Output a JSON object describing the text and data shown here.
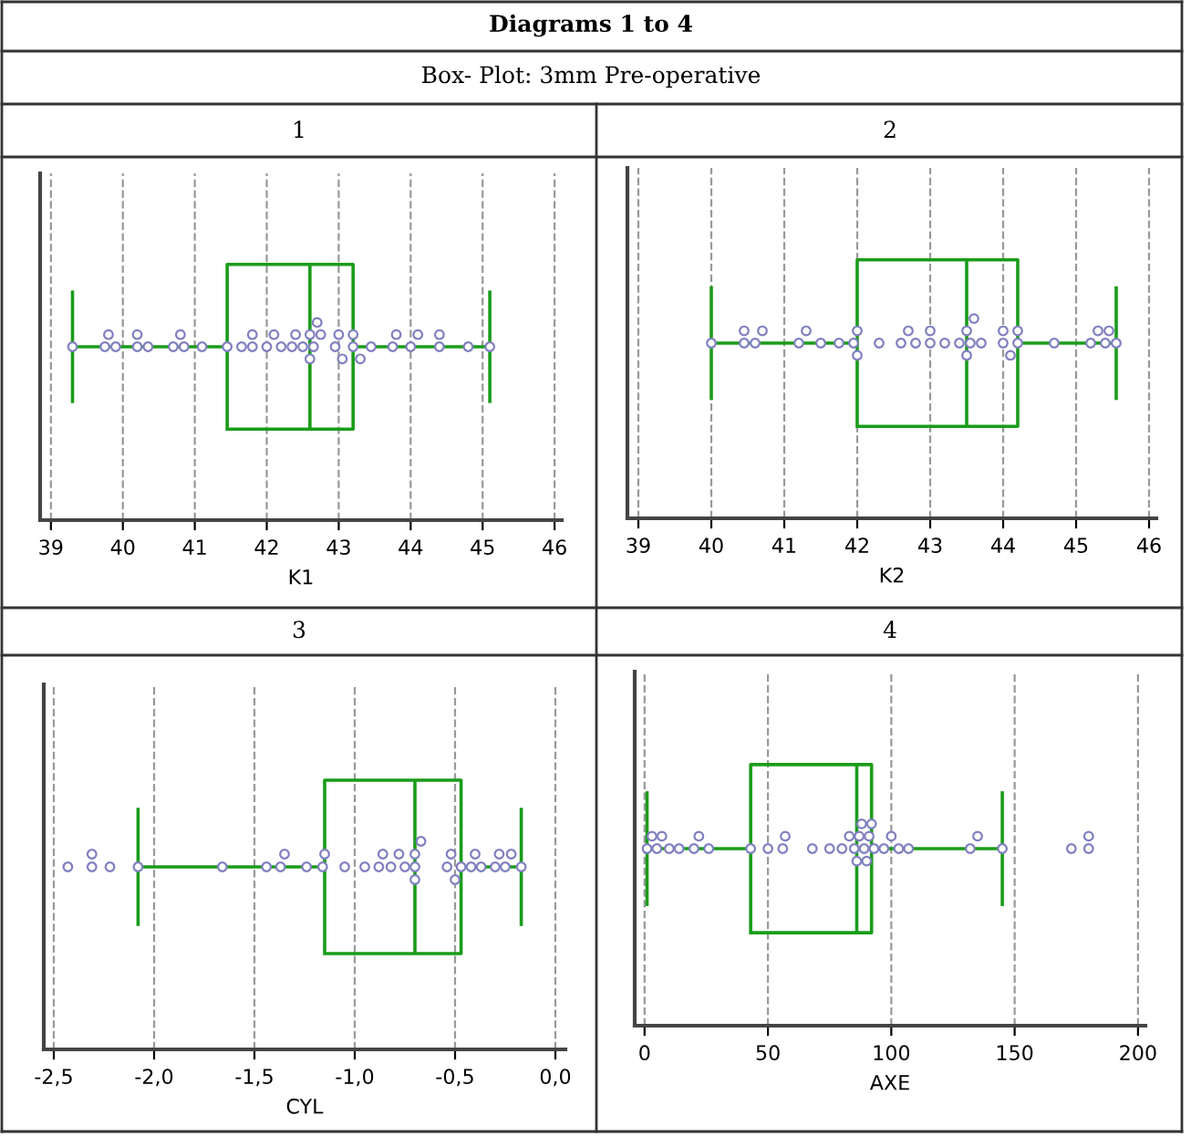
{
  "chart_data": [
    {
      "type": "box",
      "orientation": "horizontal",
      "title": "1",
      "xlabel": "K1",
      "annotations": [
        "Diagrams 1 to 4",
        "Box- Plot: 3mm Pre-operative"
      ],
      "categories": [
        null
      ],
      "boxes": [
        {
          "low": 39.3,
          "q1": 41.45,
          "median": 42.6,
          "q3": 43.2,
          "high": 45.1
        }
      ],
      "color": "#1a9c1a",
      "series": [
        {
          "type": "scatter",
          "color": "#8080c0",
          "marker": "circle",
          "x": [
            null,
            null,
            null,
            null,
            null,
            null,
            null,
            null,
            null,
            null,
            null,
            null,
            null,
            null,
            null,
            null,
            null,
            null,
            null,
            null,
            null,
            null,
            null,
            null,
            null,
            null,
            null,
            null,
            null,
            null,
            null,
            null,
            null,
            null,
            null,
            null,
            null,
            null,
            null,
            null,
            null
          ],
          "values": [
            39.3,
            39.75,
            39.8,
            39.9,
            40.2,
            40.2,
            40.35,
            40.7,
            40.8,
            40.85,
            41.1,
            41.45,
            41.65,
            41.8,
            41.8,
            42.0,
            42.1,
            42.2,
            42.35,
            42.4,
            42.5,
            42.6,
            42.6,
            42.65,
            42.7,
            42.75,
            42.95,
            43.0,
            43.05,
            43.2,
            43.2,
            43.3,
            43.45,
            43.75,
            43.8,
            44.0,
            44.1,
            44.4,
            44.4,
            44.8,
            45.1
          ]
        }
      ],
      "xlim": [
        38.85,
        46.1
      ],
      "xticks": [
        39,
        40,
        41,
        42,
        43,
        44,
        45,
        46
      ],
      "grid": "x",
      "tick_labels": "x"
    },
    {
      "type": "box",
      "orientation": "horizontal",
      "title": "2",
      "xlabel": "K2",
      "categories": [
        null
      ],
      "boxes": [
        {
          "low": 40.0,
          "q1": 42.0,
          "median": 43.5,
          "q3": 44.2,
          "high": 45.55
        }
      ],
      "color": "#1a9c1a",
      "series": [
        {
          "type": "scatter",
          "color": "#8080c0",
          "marker": "circle",
          "x": [
            null,
            null,
            null,
            null,
            null,
            null,
            null,
            null,
            null,
            null,
            null,
            null,
            null,
            null,
            null,
            null,
            null,
            null,
            null,
            null,
            null,
            null,
            null,
            null,
            null,
            null,
            null,
            null,
            null,
            null,
            null,
            null,
            null,
            null,
            null,
            null
          ],
          "values": [
            40.0,
            40.45,
            40.45,
            40.6,
            40.7,
            41.2,
            41.3,
            41.5,
            41.75,
            41.95,
            42.0,
            42.0,
            42.3,
            42.6,
            42.7,
            42.8,
            43.0,
            43.0,
            43.2,
            43.4,
            43.5,
            43.5,
            43.55,
            43.6,
            43.7,
            44.0,
            44.0,
            44.1,
            44.2,
            44.2,
            44.7,
            45.2,
            45.3,
            45.4,
            45.45,
            45.55
          ]
        }
      ],
      "xlim": [
        38.85,
        46.1
      ],
      "xticks": [
        39,
        40,
        41,
        42,
        43,
        44,
        45,
        46
      ],
      "grid": "x",
      "tick_labels": "x"
    },
    {
      "type": "box",
      "orientation": "horizontal",
      "title": "3",
      "xlabel": "CYL",
      "categories": [
        null
      ],
      "boxes": [
        {
          "low": -2.08,
          "q1": -1.15,
          "median": -0.7,
          "q3": -0.47,
          "high": -0.17
        }
      ],
      "color": "#1a9c1a",
      "series": [
        {
          "type": "scatter",
          "color": "#8080c0",
          "marker": "circle",
          "x": [
            null,
            null,
            null,
            null,
            null,
            null,
            null,
            null,
            null,
            null,
            null,
            null,
            null,
            null,
            null,
            null,
            null,
            null,
            null,
            null,
            null,
            null,
            null,
            null,
            null,
            null,
            null,
            null,
            null,
            null,
            null,
            null,
            null,
            null,
            null
          ],
          "values": [
            -2.43,
            -2.31,
            -2.31,
            -2.22,
            -2.08,
            -1.66,
            -1.44,
            -1.37,
            -1.35,
            -1.24,
            -1.16,
            -1.15,
            -1.05,
            -0.95,
            -0.88,
            -0.86,
            -0.82,
            -0.78,
            -0.75,
            -0.7,
            -0.7,
            -0.7,
            -0.67,
            -0.54,
            -0.52,
            -0.5,
            -0.47,
            -0.42,
            -0.4,
            -0.37,
            -0.3,
            -0.28,
            -0.25,
            -0.22,
            -0.17
          ]
        }
      ],
      "xlim": [
        -2.55,
        0.05
      ],
      "xticks": [
        {
          "value": -2.5,
          "label": "-2,5"
        },
        {
          "value": -2.0,
          "label": "-2,0"
        },
        {
          "value": -1.5,
          "label": "-1,5"
        },
        {
          "value": -1.0,
          "label": "-1,0"
        },
        {
          "value": -0.5,
          "label": "-0,5"
        },
        {
          "value": 0.0,
          "label": "0,0"
        }
      ],
      "grid": "x",
      "tick_labels": "x"
    },
    {
      "type": "box",
      "orientation": "horizontal",
      "title": "4",
      "xlabel": "AXE",
      "categories": [
        null
      ],
      "boxes": [
        {
          "low": 1,
          "q1": 43,
          "median": 86,
          "q3": 92,
          "high": 145
        }
      ],
      "color": "#1a9c1a",
      "series": [
        {
          "type": "scatter",
          "color": "#8080c0",
          "marker": "circle",
          "x": [
            null,
            null,
            null,
            null,
            null,
            null,
            null,
            null,
            null,
            null,
            null,
            null,
            null,
            null,
            null,
            null,
            null,
            null,
            null,
            null,
            null,
            null,
            null,
            null,
            null,
            null,
            null,
            null,
            null,
            null,
            null,
            null,
            null,
            null,
            null,
            null
          ],
          "values": [
            1,
            3,
            5,
            7,
            10,
            14,
            20,
            22,
            26,
            43,
            50,
            56,
            57,
            68,
            75,
            80,
            83,
            85,
            86,
            87,
            88,
            89,
            90,
            91,
            92,
            93,
            97,
            100,
            103,
            107,
            132,
            135,
            145,
            173,
            180,
            180
          ]
        }
      ],
      "xlim": [
        -4,
        203
      ],
      "xticks": [
        0,
        50,
        100,
        150,
        200
      ],
      "grid": "x",
      "tick_labels": "x"
    }
  ]
}
